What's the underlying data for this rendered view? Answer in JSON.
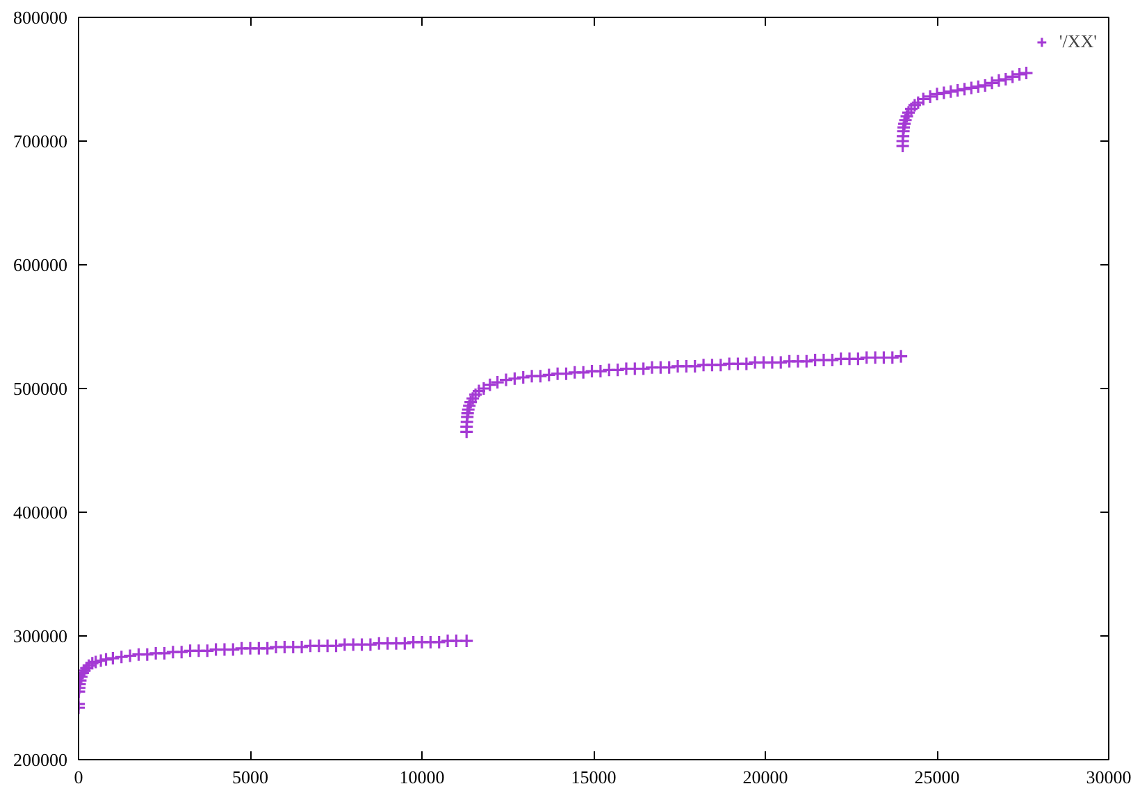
{
  "chart_data": {
    "type": "scatter",
    "series": [
      {
        "name": "'/XX'",
        "color": "#a43ad4",
        "x": [
          0,
          0,
          10,
          20,
          30,
          50,
          80,
          120,
          170,
          230,
          300,
          400,
          500,
          650,
          800,
          1000,
          1250,
          1500,
          1750,
          2000,
          2250,
          2500,
          2750,
          3000,
          3250,
          3500,
          3750,
          4000,
          4250,
          4500,
          4750,
          5000,
          5250,
          5500,
          5750,
          6000,
          6250,
          6500,
          6750,
          7000,
          7250,
          7500,
          7750,
          8000,
          8250,
          8500,
          8750,
          9000,
          9250,
          9500,
          9750,
          10000,
          10250,
          10500,
          10750,
          11000,
          11300,
          11300,
          11300,
          11310,
          11320,
          11330,
          11350,
          11380,
          11420,
          11480,
          11560,
          11660,
          11800,
          11980,
          12200,
          12450,
          12700,
          12950,
          13200,
          13450,
          13700,
          13950,
          14200,
          14450,
          14700,
          14950,
          15200,
          15450,
          15700,
          15950,
          16200,
          16450,
          16700,
          16950,
          17200,
          17450,
          17700,
          17950,
          18200,
          18450,
          18700,
          18950,
          19200,
          19450,
          19700,
          19950,
          20200,
          20450,
          20700,
          20950,
          21200,
          21450,
          21700,
          21950,
          22200,
          22450,
          22700,
          22950,
          23200,
          23450,
          23700,
          23950,
          24000,
          24000,
          24010,
          24020,
          24030,
          24050,
          24080,
          24120,
          24170,
          24250,
          24350,
          24450,
          24600,
          24800,
          25000,
          25200,
          25400,
          25600,
          25800,
          26000,
          26200,
          26400,
          26600,
          26800,
          27000,
          27200,
          27400,
          27600
        ],
        "values": [
          242000,
          245000,
          255000,
          258000,
          261000,
          264000,
          267000,
          270000,
          272000,
          274000,
          276000,
          278000,
          279000,
          280000,
          281000,
          282000,
          283000,
          284000,
          285000,
          285000,
          286000,
          286000,
          287000,
          287000,
          288000,
          288000,
          288000,
          289000,
          289000,
          289000,
          290000,
          290000,
          290000,
          290000,
          291000,
          291000,
          291000,
          291000,
          292000,
          292000,
          292000,
          292000,
          293000,
          293000,
          293000,
          293000,
          294000,
          294000,
          294000,
          294000,
          295000,
          295000,
          295000,
          295000,
          296000,
          296000,
          296000,
          465000,
          469000,
          473000,
          477000,
          480000,
          483000,
          486000,
          489000,
          492000,
          495000,
          498000,
          500000,
          503000,
          505000,
          507000,
          508000,
          509000,
          510000,
          510000,
          511000,
          512000,
          512000,
          513000,
          513000,
          514000,
          514000,
          515000,
          515000,
          516000,
          516000,
          516000,
          517000,
          517000,
          517000,
          518000,
          518000,
          518000,
          519000,
          519000,
          519000,
          520000,
          520000,
          520000,
          521000,
          521000,
          521000,
          521000,
          522000,
          522000,
          522000,
          523000,
          523000,
          523000,
          524000,
          524000,
          524000,
          525000,
          525000,
          525000,
          525000,
          526000,
          696000,
          700000,
          704000,
          708000,
          711000,
          714000,
          717000,
          720000,
          723000,
          726000,
          729000,
          731000,
          734000,
          736000,
          738000,
          739000,
          740000,
          741000,
          742000,
          743000,
          744000,
          745000,
          747000,
          749000,
          750000,
          752000,
          754000,
          755000
        ]
      }
    ],
    "xlim": [
      0,
      30000
    ],
    "ylim": [
      200000,
      800000
    ],
    "xticks": [
      0,
      5000,
      10000,
      15000,
      20000,
      25000,
      30000
    ],
    "yticks": [
      200000,
      300000,
      400000,
      500000,
      600000,
      700000,
      800000
    ],
    "marker": "cross",
    "legend": "top right",
    "grid": false
  }
}
